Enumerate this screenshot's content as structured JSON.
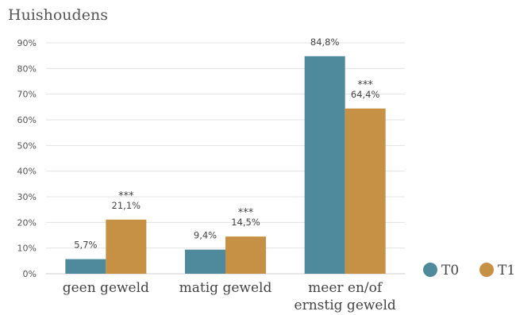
{
  "chart_data": {
    "type": "bar",
    "title": "Huishoudens",
    "categories": [
      [
        "geen geweld"
      ],
      [
        "matig geweld"
      ],
      [
        "meer en/of",
        "ernstig geweld"
      ]
    ],
    "series": [
      {
        "name": "T0",
        "values": [
          5.7,
          9.4,
          84.8
        ],
        "labels": [
          "5,7%",
          "9,4%",
          "84,8%"
        ],
        "significance": [
          "",
          "",
          ""
        ],
        "color": "#4e8a9b"
      },
      {
        "name": "T1",
        "values": [
          21.1,
          14.5,
          64.4
        ],
        "labels": [
          "21,1%",
          "14,5%",
          "64,4%"
        ],
        "significance": [
          "***",
          "***",
          "***"
        ],
        "color": "#c69145"
      }
    ],
    "ylim": [
      0,
      90
    ],
    "yticks": [
      "0%",
      "10%",
      "20%",
      "30%",
      "40%",
      "50%",
      "60%",
      "70%",
      "80%",
      "90%"
    ],
    "grid": true,
    "legend_position": "bottom-right",
    "xlabel": "",
    "ylabel": ""
  }
}
